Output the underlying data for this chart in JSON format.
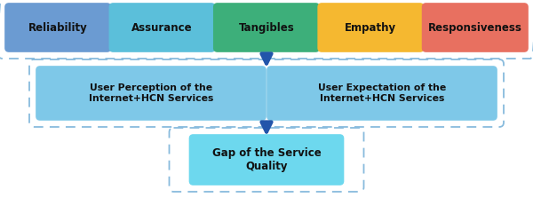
{
  "top_boxes": [
    {
      "label": "Reliability",
      "color": "#6B9BD2"
    },
    {
      "label": "Assurance",
      "color": "#5BBFDA"
    },
    {
      "label": "Tangibles",
      "color": "#3DAF7A"
    },
    {
      "label": "Empathy",
      "color": "#F5B830"
    },
    {
      "label": "Responsiveness",
      "color": "#E87060"
    }
  ],
  "mid_boxes": [
    {
      "label": "User Perception of the\nInternet+HCN Services",
      "color": "#7EC8E8"
    },
    {
      "label": "User Expectation of the\nInternet+HCN Services",
      "color": "#7EC8E8"
    }
  ],
  "bottom_box": {
    "label": "Gap of the Service\nQuality",
    "color": "#6DD8EE"
  },
  "arrow_color": "#2255AA",
  "outer_border_color": "#88BBDD",
  "bg_color": "#FFFFFF",
  "text_color": "#111111",
  "font_size_top": 8.5,
  "font_size_mid": 7.8,
  "font_size_bot": 8.5
}
